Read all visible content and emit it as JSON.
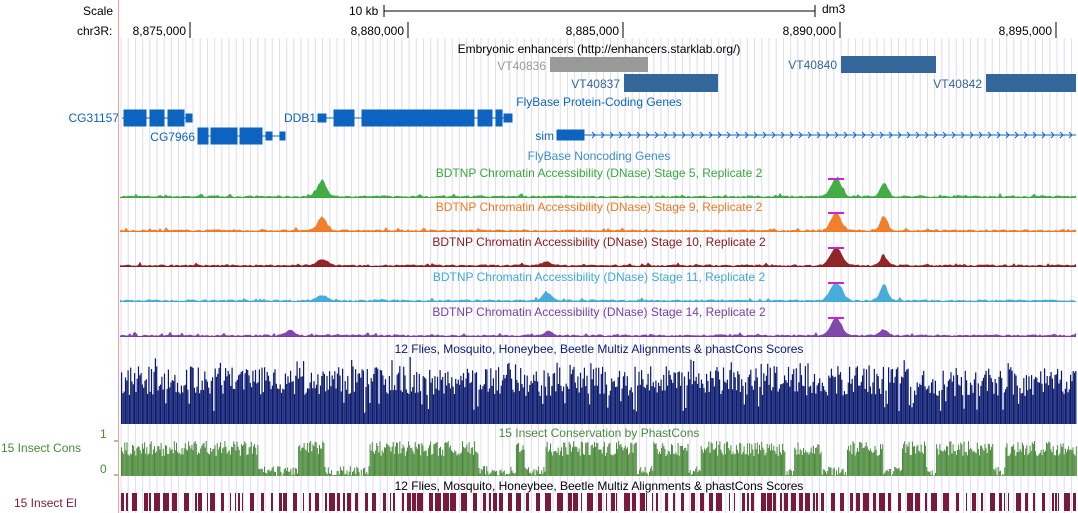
{
  "scale": {
    "label": "Scale",
    "bar_label": "10 kb",
    "assembly": "dm3"
  },
  "ruler": {
    "chrom_label": "chr3R:",
    "ticks": [
      "8,875,000",
      "8,880,000",
      "8,885,000",
      "8,890,000",
      "8,895,000"
    ]
  },
  "tracks": {
    "enhancers": {
      "title": "Embryonic enhancers (http://enhancers.starklab.org/)",
      "items": [
        "VT40836",
        "VT40837",
        "VT40840",
        "VT40842"
      ],
      "colors": {
        "grey": "#999999",
        "blue": "#336699"
      }
    },
    "coding_genes": {
      "title": "FlyBase Protein-Coding Genes",
      "genes": [
        "CG31157",
        "CG7966",
        "DDB1",
        "sim"
      ],
      "color": "#0c64c0"
    },
    "noncoding_genes": {
      "title": "FlyBase Noncoding Genes"
    },
    "dnase": [
      {
        "title": "BDTNP Chromatin Accessibility (DNase) Stage 5, Replicate 2",
        "color": "#3aa83a"
      },
      {
        "title": "BDTNP Chromatin Accessibility (DNase) Stage 9, Replicate 2",
        "color": "#f07820"
      },
      {
        "title": "BDTNP Chromatin Accessibility (DNase) Stage 10, Replicate 2",
        "color": "#8b1a1a"
      },
      {
        "title": "BDTNP Chromatin Accessibility (DNase) Stage 11, Replicate 2",
        "color": "#3fa8d8"
      },
      {
        "title": "BDTNP Chromatin Accessibility (DNase) Stage 14, Replicate 2",
        "color": "#7a3ea8"
      }
    ],
    "multiz": {
      "title": "12 Flies, Mosquito, Honeybee, Beetle Multiz Alignments & phastCons Scores",
      "color": "#0a1a6e"
    },
    "phastcons": {
      "title": "15 Insect Conservation by PhastCons",
      "side_label": "15 Insect Cons",
      "axis_max": "1",
      "axis_min": "0",
      "color": "#4a8a3a"
    },
    "elements": {
      "title": "12 Flies, Mosquito, Honeybee, Beetle Multiz Alignments & phastCons Scores",
      "side_label": "15 Insect El",
      "color": "#7a1a3a"
    }
  }
}
